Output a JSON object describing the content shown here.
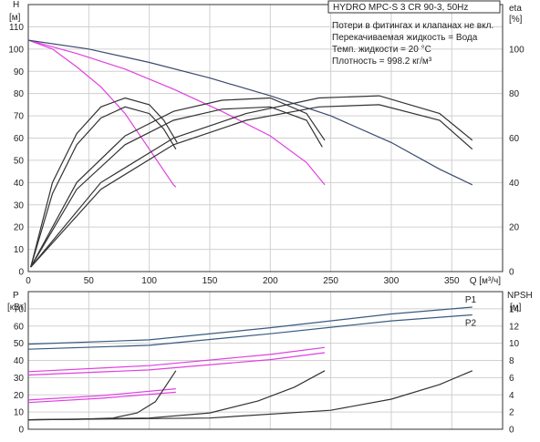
{
  "chart_data": [
    {
      "type": "line",
      "title": "HYDRO MPC-S 3 CR 90-3, 50Hz",
      "annotations": [
        "Потери в фитингах и клапанах не вкл.",
        "Перекачиваемая жидкость = Вода",
        "Темп. жидкости = 20 °C",
        "Плотность = 998.2 кг/м³"
      ],
      "ylabel": "H",
      "yunit": "[м]",
      "y2label": "eta",
      "y2unit": "[%]",
      "xlabel": "Q [м³/ч]",
      "xlim": [
        0,
        392
      ],
      "ylim": [
        0,
        120
      ],
      "y2lim": [
        0,
        120
      ],
      "xticks": [
        0,
        50,
        100,
        150,
        200,
        250,
        300,
        350
      ],
      "yticks": [
        0,
        10,
        20,
        30,
        40,
        50,
        60,
        70,
        80,
        90,
        100,
        110
      ],
      "y2ticks": [
        0,
        20,
        40,
        60,
        80,
        100
      ],
      "grid": true,
      "colors": {
        "head_system": "#3a4a6e",
        "head_pump": "#e040e0",
        "eta": "#333333"
      },
      "head_series": [
        {
          "kind": "head_pump",
          "points": [
            [
              0,
              104
            ],
            [
              20,
              100
            ],
            [
              40,
              92
            ],
            [
              60,
              83
            ],
            [
              80,
              71
            ],
            [
              100,
              55
            ],
            [
              110,
              47
            ],
            [
              120,
              39
            ],
            [
              122,
              38
            ]
          ]
        },
        {
          "kind": "head_pump",
          "points": [
            [
              0,
              104
            ],
            [
              40,
              98
            ],
            [
              80,
              91
            ],
            [
              120,
              82
            ],
            [
              160,
              72
            ],
            [
              200,
              61
            ],
            [
              230,
              49
            ],
            [
              245,
              39
            ]
          ]
        },
        {
          "kind": "head_system",
          "points": [
            [
              0,
              104
            ],
            [
              50,
              100
            ],
            [
              100,
              94
            ],
            [
              150,
              87
            ],
            [
              200,
              79
            ],
            [
              250,
              70
            ],
            [
              300,
              58
            ],
            [
              340,
              46
            ],
            [
              367,
              39
            ]
          ]
        }
      ],
      "eta_series": [
        {
          "points": [
            [
              2,
              2
            ],
            [
              20,
              40
            ],
            [
              40,
              62
            ],
            [
              60,
              74
            ],
            [
              80,
              78
            ],
            [
              100,
              75
            ],
            [
              112,
              68
            ],
            [
              123,
              58
            ]
          ]
        },
        {
          "points": [
            [
              2,
              2
            ],
            [
              20,
              35
            ],
            [
              40,
              57
            ],
            [
              60,
              69
            ],
            [
              80,
              74
            ],
            [
              100,
              71
            ],
            [
              112,
              64
            ],
            [
              122,
              55
            ]
          ]
        },
        {
          "points": [
            [
              2,
              2
            ],
            [
              40,
              40
            ],
            [
              80,
              61
            ],
            [
              120,
              72
            ],
            [
              160,
              77
            ],
            [
              200,
              78
            ],
            [
              230,
              71
            ],
            [
              245,
              59
            ]
          ]
        },
        {
          "points": [
            [
              2,
              2
            ],
            [
              40,
              37
            ],
            [
              80,
              57
            ],
            [
              120,
              68
            ],
            [
              160,
              73
            ],
            [
              200,
              74
            ],
            [
              230,
              68
            ],
            [
              243,
              56
            ]
          ]
        },
        {
          "points": [
            [
              2,
              2
            ],
            [
              60,
              40
            ],
            [
              120,
              60
            ],
            [
              180,
              71
            ],
            [
              240,
              78
            ],
            [
              290,
              79
            ],
            [
              340,
              71
            ],
            [
              367,
              59
            ]
          ]
        },
        {
          "points": [
            [
              2,
              2
            ],
            [
              60,
              37
            ],
            [
              120,
              57
            ],
            [
              180,
              68
            ],
            [
              240,
              74
            ],
            [
              290,
              75
            ],
            [
              340,
              68
            ],
            [
              367,
              55
            ]
          ]
        }
      ]
    },
    {
      "type": "line",
      "ylabel": "P",
      "yunit": "[кВт]",
      "y2label": "NPSH",
      "y2unit": "[м]",
      "xlim": [
        0,
        392
      ],
      "ylim": [
        0,
        80
      ],
      "y2lim": [
        0,
        16
      ],
      "yticks": [
        0,
        10,
        20,
        30,
        40,
        50,
        60,
        70
      ],
      "y2ticks": [
        0,
        2,
        4,
        6,
        8,
        10,
        12,
        14
      ],
      "grid": true,
      "colors": {
        "power_system": "#3a5a80",
        "power_pump": "#e040e0",
        "npsh": "#333333"
      },
      "power_series": [
        {
          "name": "P1",
          "kind": "power_system",
          "points": [
            [
              0,
              49.5
            ],
            [
              100,
              52
            ],
            [
              200,
              59
            ],
            [
              300,
              67
            ],
            [
              367,
              71
            ]
          ]
        },
        {
          "name": "P2",
          "kind": "power_system",
          "points": [
            [
              0,
              46.5
            ],
            [
              100,
              48.8
            ],
            [
              200,
              55.5
            ],
            [
              300,
              63
            ],
            [
              367,
              66.5
            ]
          ]
        },
        {
          "kind": "power_pump",
          "points": [
            [
              0,
              33.5
            ],
            [
              100,
              37
            ],
            [
              200,
              43.5
            ],
            [
              245,
              47.5
            ]
          ]
        },
        {
          "kind": "power_pump",
          "points": [
            [
              0,
              31.5
            ],
            [
              100,
              34.5
            ],
            [
              200,
              40.5
            ],
            [
              245,
              44.5
            ]
          ]
        },
        {
          "kind": "power_pump",
          "points": [
            [
              0,
              17
            ],
            [
              60,
              19.5
            ],
            [
              122,
              23.5
            ]
          ]
        },
        {
          "kind": "power_pump",
          "points": [
            [
              0,
              15.5
            ],
            [
              60,
              18
            ],
            [
              122,
              21.5
            ]
          ]
        }
      ],
      "npsh_series": [
        {
          "points": [
            [
              0,
              1.1
            ],
            [
              40,
              1.15
            ],
            [
              70,
              1.3
            ],
            [
              90,
              1.9
            ],
            [
              105,
              3.2
            ],
            [
              122,
              6.8
            ]
          ]
        },
        {
          "points": [
            [
              0,
              1.1
            ],
            [
              100,
              1.3
            ],
            [
              150,
              1.9
            ],
            [
              190,
              3.3
            ],
            [
              220,
              4.9
            ],
            [
              245,
              6.8
            ]
          ]
        },
        {
          "points": [
            [
              0,
              1.1
            ],
            [
              150,
              1.3
            ],
            [
              250,
              2.2
            ],
            [
              300,
              3.5
            ],
            [
              340,
              5.2
            ],
            [
              367,
              6.8
            ]
          ]
        }
      ]
    }
  ]
}
